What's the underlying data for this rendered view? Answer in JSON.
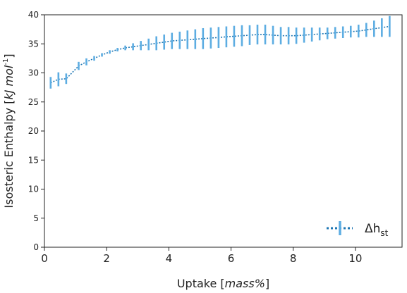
{
  "chart_data": {
    "type": "line",
    "xlabel_prefix": "Uptake [",
    "xlabel_italic": "mass%",
    "xlabel_suffix": "]",
    "ylabel_prefix": "Isosteric Enthalpy [",
    "ylabel_italic": "kJ mol",
    "ylabel_sup": "-1",
    "ylabel_suffix": "]",
    "xlim": [
      0,
      11.5
    ],
    "ylim": [
      0,
      40
    ],
    "xticks": [
      0,
      2,
      4,
      6,
      8,
      10
    ],
    "yticks": [
      0,
      5,
      10,
      15,
      20,
      25,
      30,
      35,
      40
    ],
    "legend_position": "bottom-right",
    "legend": {
      "symbol": "Δh",
      "subscript": "st"
    },
    "colors": {
      "line": "#1f77b4",
      "errorbar": "#5dade2"
    },
    "series": [
      {
        "x": [
          0.2,
          0.45,
          0.7,
          1.1,
          1.35,
          1.6,
          1.85,
          2.1,
          2.35,
          2.6,
          2.85,
          3.1,
          3.35,
          3.6,
          3.85,
          4.1,
          4.35,
          4.6,
          4.85,
          5.1,
          5.35,
          5.6,
          5.85,
          6.1,
          6.35,
          6.6,
          6.85,
          7.1,
          7.35,
          7.6,
          7.85,
          8.1,
          8.35,
          8.6,
          8.85,
          9.1,
          9.35,
          9.6,
          9.85,
          10.1,
          10.35,
          10.6,
          10.85,
          11.1
        ],
        "y": [
          28.3,
          28.9,
          29.0,
          31.2,
          31.9,
          32.5,
          33.1,
          33.6,
          34.0,
          34.3,
          34.5,
          34.7,
          34.9,
          35.1,
          35.3,
          35.5,
          35.6,
          35.7,
          35.8,
          35.9,
          36.0,
          36.1,
          36.2,
          36.3,
          36.4,
          36.5,
          36.6,
          36.6,
          36.5,
          36.4,
          36.4,
          36.4,
          36.5,
          36.6,
          36.7,
          36.8,
          36.9,
          37.0,
          37.1,
          37.2,
          37.4,
          37.6,
          37.8,
          38.0
        ],
        "err": [
          1.0,
          1.2,
          0.9,
          0.7,
          0.6,
          0.4,
          0.3,
          0.3,
          0.3,
          0.4,
          0.6,
          0.8,
          1.0,
          1.2,
          1.3,
          1.4,
          1.5,
          1.6,
          1.7,
          1.8,
          1.8,
          1.8,
          1.8,
          1.8,
          1.8,
          1.7,
          1.7,
          1.7,
          1.6,
          1.5,
          1.5,
          1.4,
          1.3,
          1.2,
          1.1,
          1.0,
          1.0,
          1.0,
          1.0,
          1.1,
          1.2,
          1.4,
          1.6,
          1.8
        ]
      }
    ]
  }
}
